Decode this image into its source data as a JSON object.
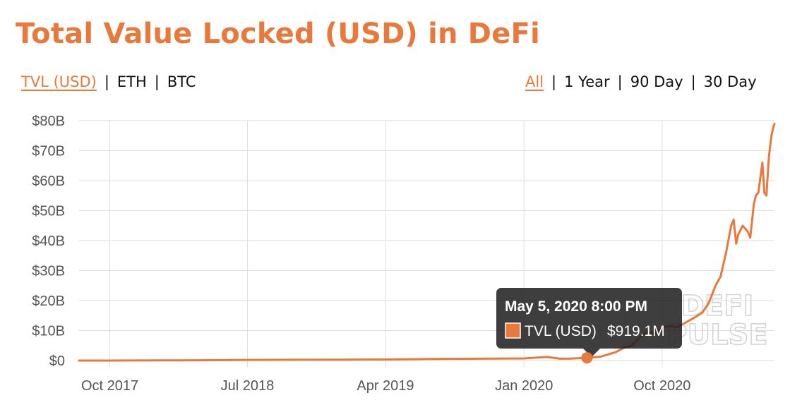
{
  "title": "Total Value Locked (USD) in DeFi",
  "accent_color": "#e8793a",
  "unit_toggles": [
    {
      "label": "TVL (USD)",
      "active": true
    },
    {
      "label": "ETH",
      "active": false
    },
    {
      "label": "BTC",
      "active": false
    }
  ],
  "separator": "|",
  "range_toggles": [
    {
      "label": "All",
      "active": true
    },
    {
      "label": "1 Year",
      "active": false
    },
    {
      "label": "90 Day",
      "active": false
    },
    {
      "label": "30 Day",
      "active": false
    }
  ],
  "watermark": {
    "line1": "DEFI",
    "line2": "PULSE"
  },
  "tooltip": {
    "title": "May 5, 2020 8:00 PM",
    "series_label": "TVL (USD)",
    "value": "$919.1M",
    "date": "2020-05-05",
    "y": 0.9191
  },
  "chart_data": {
    "type": "line",
    "title": "Total Value Locked (USD) in DeFi",
    "xlabel": "",
    "ylabel": "",
    "y_unit": "billion USD",
    "ylim": [
      0,
      80
    ],
    "x_range": [
      "2017-08-01",
      "2021-05-12"
    ],
    "y_ticks": [
      {
        "value": 0,
        "label": "$0"
      },
      {
        "value": 10,
        "label": "$10B"
      },
      {
        "value": 20,
        "label": "$20B"
      },
      {
        "value": 30,
        "label": "$30B"
      },
      {
        "value": 40,
        "label": "$40B"
      },
      {
        "value": 50,
        "label": "$50B"
      },
      {
        "value": 60,
        "label": "$60B"
      },
      {
        "value": 70,
        "label": "$70B"
      },
      {
        "value": 80,
        "label": "$80B"
      }
    ],
    "x_ticks": [
      {
        "date": "2017-10-01",
        "label": "Oct 2017"
      },
      {
        "date": "2018-07-01",
        "label": "Jul 2018"
      },
      {
        "date": "2019-04-01",
        "label": "Apr 2019"
      },
      {
        "date": "2020-01-01",
        "label": "Jan 2020"
      },
      {
        "date": "2020-10-01",
        "label": "Oct 2020"
      }
    ],
    "grid": true,
    "series": [
      {
        "name": "TVL (USD)",
        "color": "#e8793a",
        "points": [
          [
            "2017-08-01",
            0.0
          ],
          [
            "2017-10-01",
            0.01
          ],
          [
            "2018-01-01",
            0.05
          ],
          [
            "2018-04-01",
            0.1
          ],
          [
            "2018-07-01",
            0.2
          ],
          [
            "2018-10-01",
            0.25
          ],
          [
            "2019-01-01",
            0.28
          ],
          [
            "2019-04-01",
            0.35
          ],
          [
            "2019-07-01",
            0.55
          ],
          [
            "2019-10-01",
            0.6
          ],
          [
            "2020-01-01",
            0.7
          ],
          [
            "2020-02-15",
            1.2
          ],
          [
            "2020-03-12",
            0.6
          ],
          [
            "2020-04-01",
            0.65
          ],
          [
            "2020-05-05",
            0.92
          ],
          [
            "2020-06-01",
            1.3
          ],
          [
            "2020-07-01",
            2.8
          ],
          [
            "2020-07-20",
            4.5
          ],
          [
            "2020-08-01",
            5.0
          ],
          [
            "2020-08-20",
            8.0
          ],
          [
            "2020-09-01",
            9.5
          ],
          [
            "2020-09-15",
            9.0
          ],
          [
            "2020-10-01",
            11.0
          ],
          [
            "2020-10-15",
            11.5
          ],
          [
            "2020-11-01",
            11.2
          ],
          [
            "2020-11-20",
            13.0
          ],
          [
            "2020-12-01",
            14.0
          ],
          [
            "2020-12-20",
            16.0
          ],
          [
            "2021-01-01",
            19.0
          ],
          [
            "2021-01-15",
            25.0
          ],
          [
            "2021-01-25",
            28.0
          ],
          [
            "2021-02-05",
            36.0
          ],
          [
            "2021-02-15",
            45.0
          ],
          [
            "2021-02-20",
            47.0
          ],
          [
            "2021-02-25",
            39.0
          ],
          [
            "2021-03-01",
            42.0
          ],
          [
            "2021-03-10",
            45.0
          ],
          [
            "2021-03-20",
            43.0
          ],
          [
            "2021-03-25",
            41.0
          ],
          [
            "2021-04-01",
            52.0
          ],
          [
            "2021-04-05",
            55.0
          ],
          [
            "2021-04-10",
            56.0
          ],
          [
            "2021-04-14",
            61.0
          ],
          [
            "2021-04-18",
            66.0
          ],
          [
            "2021-04-22",
            56.0
          ],
          [
            "2021-04-26",
            55.0
          ],
          [
            "2021-05-01",
            68.0
          ],
          [
            "2021-05-06",
            75.0
          ],
          [
            "2021-05-10",
            78.0
          ],
          [
            "2021-05-12",
            79.0
          ]
        ]
      }
    ]
  }
}
